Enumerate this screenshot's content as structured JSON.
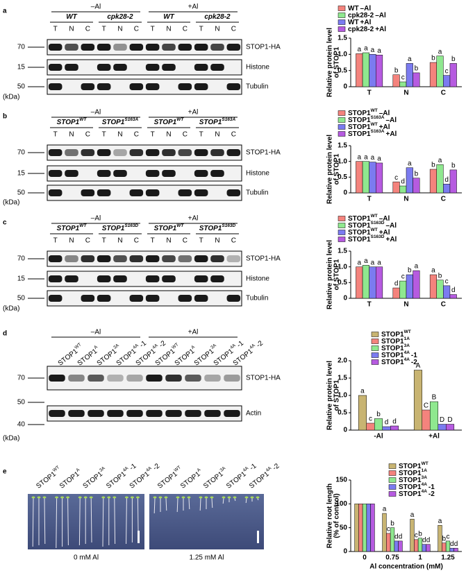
{
  "panels": [
    {
      "letter": "a",
      "conditions": [
        "–Al",
        "+Al"
      ],
      "genotypes": [
        {
          "name": "WT"
        },
        {
          "name": "cpk28-2"
        },
        {
          "name": "WT"
        },
        {
          "name": "cpk28-2"
        }
      ],
      "lanes": [
        "T",
        "N",
        "C",
        "T",
        "N",
        "C",
        "T",
        "N",
        "C",
        "T",
        "N",
        "C"
      ],
      "markers": [
        "70",
        "15",
        "50"
      ],
      "rows": [
        "STOP1-HA",
        "Histone",
        "Tubulin"
      ],
      "unit": "(kDa)"
    },
    {
      "letter": "b",
      "conditions": [
        "–Al",
        "+Al"
      ],
      "genotypes": [
        {
          "name": "STOP1",
          "superscript": "WT"
        },
        {
          "name": "STOP1",
          "superscript": "S163A"
        },
        {
          "name": "STOP1",
          "superscript": "WT"
        },
        {
          "name": "STOP1",
          "superscript": "S163A"
        }
      ],
      "lanes": [
        "T",
        "N",
        "C",
        "T",
        "N",
        "C",
        "T",
        "N",
        "C",
        "T",
        "N",
        "C"
      ],
      "markers": [
        "70",
        "15",
        "50"
      ],
      "rows": [
        "STOP1-HA",
        "Histone",
        "Tubulin"
      ],
      "unit": "(kDa)"
    },
    {
      "letter": "c",
      "conditions": [
        "–Al",
        "+Al"
      ],
      "genotypes": [
        {
          "name": "STOP1",
          "superscript": "WT"
        },
        {
          "name": "STOP1",
          "superscript": "S163D"
        },
        {
          "name": "STOP1",
          "superscript": "WT"
        },
        {
          "name": "STOP1",
          "superscript": "S163D"
        }
      ],
      "lanes": [
        "T",
        "N",
        "C",
        "T",
        "N",
        "C",
        "T",
        "N",
        "C",
        "T",
        "N",
        "C"
      ],
      "markers": [
        "70",
        "15",
        "50"
      ],
      "rows": [
        "STOP1-HA",
        "Histone",
        "Tubulin"
      ],
      "unit": "(kDa)"
    },
    {
      "letter": "d",
      "conditions": [
        "–Al",
        "+Al"
      ],
      "lane_labels": [
        {
          "name": "STOP1",
          "superscript": "WT"
        },
        {
          "name": "STOP1",
          "superscript": "A"
        },
        {
          "name": "STOP1",
          "superscript": "3A"
        },
        {
          "name": "STOP1",
          "superscript": "4A",
          "suffix": "-1"
        },
        {
          "name": "STOP1",
          "superscript": "4A",
          "suffix": "-2"
        },
        {
          "name": "STOP1",
          "superscript": "WT"
        },
        {
          "name": "STOP1",
          "superscript": "A"
        },
        {
          "name": "STOP1",
          "superscript": "3A"
        },
        {
          "name": "STOP1",
          "superscript": "4A",
          "suffix": "-1"
        },
        {
          "name": "STOP1",
          "superscript": "4A",
          "suffix": "-2"
        }
      ],
      "markers": [
        "70",
        "50",
        "40"
      ],
      "rows": [
        "STOP1-HA",
        "Actin"
      ],
      "unit": "(kDa)"
    },
    {
      "letter": "e",
      "conditions": [
        "0 mM Al",
        "1.25 mM Al"
      ],
      "lane_labels": [
        {
          "name": "STOP1",
          "superscript": "WT"
        },
        {
          "name": "STOP1",
          "superscript": "A"
        },
        {
          "name": "STOP1",
          "superscript": "3A"
        },
        {
          "name": "STOP1",
          "superscript": "4A",
          "suffix": "-1"
        },
        {
          "name": "STOP1",
          "superscript": "4A",
          "suffix": "-2"
        },
        {
          "name": "STOP1",
          "superscript": "WT"
        },
        {
          "name": "STOP1",
          "superscript": "A"
        },
        {
          "name": "STOP1",
          "superscript": "3A"
        },
        {
          "name": "STOP1",
          "superscript": "4A",
          "suffix": "-1"
        },
        {
          "name": "STOP1",
          "superscript": "4A",
          "suffix": "-2"
        }
      ]
    }
  ],
  "chart_data": [
    {
      "type": "bar",
      "ylabel": [
        "Relative protein level",
        "of STOP1"
      ],
      "categories": [
        "T",
        "N",
        "C"
      ],
      "ylim": [
        0,
        1.5
      ],
      "yticks": [
        0,
        0.5,
        {
          "value": 1,
          "label": "1.0"
        },
        1.5
      ],
      "series": [
        {
          "name": "WT",
          "suffix": "–Al",
          "color": "#f4837d",
          "values": [
            1.02,
            0.37,
            0.75
          ],
          "letters": [
            "a",
            "b",
            "b"
          ]
        },
        {
          "name": "cpk28-2",
          "suffix": "–Al",
          "color": "#8fe88f",
          "values": [
            1.05,
            0.15,
            0.95
          ],
          "letters": [
            "a",
            "c",
            "a"
          ]
        },
        {
          "name": "WT",
          "suffix": "+Al",
          "color": "#7b7bf0",
          "values": [
            1.0,
            0.72,
            0.35
          ],
          "letters": [
            "a",
            "a",
            "c"
          ]
        },
        {
          "name": "cpk28-2",
          "suffix": "+Al",
          "color": "#b65be0",
          "values": [
            0.98,
            0.43,
            0.72
          ],
          "letters": [
            "a",
            "b",
            "b"
          ]
        }
      ]
    },
    {
      "type": "bar",
      "ylabel": [
        "Relative protein level",
        "of STOP1"
      ],
      "categories": [
        "T",
        "N",
        "C"
      ],
      "ylim": [
        0,
        1.5
      ],
      "yticks": [
        0,
        0.5,
        {
          "value": 1,
          "label": "1.0"
        },
        1.5
      ],
      "series": [
        {
          "name": "STOP1",
          "superscript": "WT",
          "suffix": "–Al",
          "color": "#f4837d",
          "values": [
            1.0,
            0.35,
            0.75
          ],
          "letters": [
            "a",
            "c",
            "b"
          ]
        },
        {
          "name": "STOP1",
          "superscript": "S163A",
          "suffix": "–Al",
          "color": "#8fe88f",
          "values": [
            1.0,
            0.22,
            0.9
          ],
          "letters": [
            "a",
            "d",
            "a"
          ]
        },
        {
          "name": "STOP1",
          "superscript": "WT",
          "suffix": "+Al",
          "color": "#7b7bf0",
          "values": [
            0.98,
            0.8,
            0.28
          ],
          "letters": [
            "a",
            "a",
            "d"
          ]
        },
        {
          "name": "STOP1",
          "superscript": "S163A",
          "suffix": "+Al",
          "color": "#b65be0",
          "values": [
            0.95,
            0.47,
            0.73
          ],
          "letters": [
            "a",
            "b",
            "b"
          ]
        }
      ]
    },
    {
      "type": "bar",
      "ylabel": [
        "Relative protein level",
        "of STOP1"
      ],
      "categories": [
        "T",
        "N",
        "C"
      ],
      "ylim": [
        0,
        1.5
      ],
      "yticks": [
        0,
        0.5,
        {
          "value": 1,
          "label": "1.0"
        },
        1.5
      ],
      "series": [
        {
          "name": "STOP1",
          "superscript": "WT",
          "suffix": "–Al",
          "color": "#f4837d",
          "values": [
            1.0,
            0.33,
            0.75
          ],
          "letters": [
            "a",
            "d",
            "a"
          ]
        },
        {
          "name": "STOP1",
          "superscript": "S163D",
          "suffix": "–Al",
          "color": "#8fe88f",
          "values": [
            1.05,
            0.55,
            0.58
          ],
          "letters": [
            "a",
            "c",
            "b"
          ]
        },
        {
          "name": "STOP1",
          "superscript": "WT",
          "suffix": "+Al",
          "color": "#7b7bf0",
          "values": [
            1.0,
            0.75,
            0.4
          ],
          "letters": [
            "a",
            "b",
            "c"
          ]
        },
        {
          "name": "STOP1",
          "superscript": "S163D",
          "suffix": "+Al",
          "color": "#b65be0",
          "values": [
            1.0,
            0.88,
            0.12
          ],
          "letters": [
            "a",
            "a",
            "d"
          ]
        }
      ]
    },
    {
      "type": "bar",
      "ylabel": [
        "Relative protein level",
        "of STOP1"
      ],
      "categories": [
        "-Al",
        "+Al"
      ],
      "ylim": [
        0,
        2
      ],
      "yticks": [
        0,
        0.5,
        {
          "value": 1,
          "label": "1.0"
        },
        1.5,
        {
          "value": 2,
          "label": "2.0"
        }
      ],
      "series": [
        {
          "name": "STOP1",
          "superscript": "WT",
          "color": "#c8b472",
          "values": [
            1.0,
            1.73
          ],
          "letters": [
            "a",
            "A"
          ]
        },
        {
          "name": "STOP1",
          "superscript": "1A",
          "color": "#f4837d",
          "values": [
            0.2,
            0.58
          ],
          "letters": [
            "c",
            "C"
          ]
        },
        {
          "name": "STOP1",
          "superscript": "3A",
          "color": "#8fe88f",
          "values": [
            0.33,
            0.82
          ],
          "letters": [
            "b",
            "B"
          ]
        },
        {
          "name": "STOP1",
          "superscript": "4A",
          "suffix": "-1",
          "color": "#7b7bf0",
          "values": [
            0.1,
            0.17
          ],
          "letters": [
            "d",
            "D"
          ]
        },
        {
          "name": "STOP1",
          "superscript": "4A",
          "suffix": "-2",
          "color": "#b65be0",
          "values": [
            0.12,
            0.17
          ],
          "letters": [
            "d",
            "D"
          ]
        }
      ]
    },
    {
      "type": "bar",
      "ylabel": [
        "Relative root length",
        "(% of control)"
      ],
      "xlabel": "Al concentration (mM)",
      "categories": [
        "0",
        "0.75",
        "1",
        "1.25"
      ],
      "ylim": [
        0,
        150
      ],
      "yticks": [
        0,
        50,
        100,
        150
      ],
      "series": [
        {
          "name": "STOP1",
          "superscript": "WT",
          "color": "#c8b472",
          "values": [
            100,
            80,
            68,
            55
          ],
          "letters": [
            null,
            "a",
            "a",
            "a"
          ]
        },
        {
          "name": "STOP1",
          "superscript": "1A",
          "color": "#f4837d",
          "values": [
            100,
            38,
            25,
            18
          ],
          "letters": [
            null,
            "c",
            "c",
            "b"
          ]
        },
        {
          "name": "STOP1",
          "superscript": "3A",
          "color": "#8fe88f",
          "values": [
            100,
            50,
            28,
            22
          ],
          "letters": [
            null,
            "b",
            "b",
            "c"
          ]
        },
        {
          "name": "STOP1",
          "superscript": "4A",
          "suffix": "-1",
          "color": "#7b7bf0",
          "values": [
            100,
            22,
            15,
            7
          ],
          "letters": [
            null,
            "d",
            "d",
            "d"
          ]
        },
        {
          "name": "STOP1",
          "superscript": "4A",
          "suffix": "-2",
          "color": "#b65be0",
          "values": [
            100,
            22,
            15,
            7
          ],
          "letters": [
            null,
            "d",
            "d",
            "d"
          ]
        }
      ]
    }
  ]
}
